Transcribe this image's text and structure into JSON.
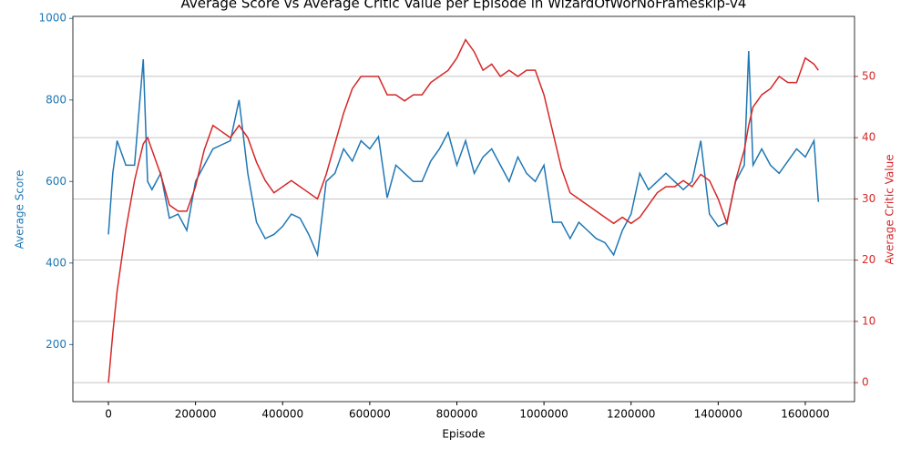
{
  "chart_data": {
    "type": "line",
    "title": "Average Score vs Average Critic Value per Episode in WizardOfWorNoFrameskip-v4",
    "x_label": "Episode",
    "y_label": "Average Score",
    "y2_label": "Average Critic Value",
    "x": [
      0,
      10000,
      20000,
      40000,
      60000,
      80000,
      90000,
      100000,
      120000,
      140000,
      160000,
      180000,
      200000,
      220000,
      240000,
      260000,
      280000,
      300000,
      320000,
      340000,
      360000,
      380000,
      400000,
      420000,
      440000,
      460000,
      480000,
      500000,
      520000,
      540000,
      560000,
      580000,
      600000,
      620000,
      640000,
      660000,
      680000,
      700000,
      720000,
      740000,
      760000,
      780000,
      800000,
      820000,
      840000,
      860000,
      880000,
      900000,
      920000,
      940000,
      960000,
      980000,
      1000000,
      1020000,
      1040000,
      1060000,
      1080000,
      1100000,
      1120000,
      1140000,
      1160000,
      1180000,
      1200000,
      1220000,
      1240000,
      1260000,
      1280000,
      1300000,
      1320000,
      1340000,
      1360000,
      1380000,
      1400000,
      1420000,
      1440000,
      1460000,
      1470000,
      1480000,
      1500000,
      1520000,
      1540000,
      1560000,
      1580000,
      1600000,
      1620000,
      1630000
    ],
    "series": [
      {
        "name": "Average Score",
        "color": "#1f77b4",
        "axis": "y",
        "values": [
          470,
          620,
          700,
          640,
          640,
          900,
          600,
          580,
          620,
          510,
          520,
          480,
          600,
          640,
          680,
          690,
          700,
          800,
          620,
          500,
          460,
          470,
          490,
          520,
          510,
          470,
          420,
          600,
          620,
          680,
          650,
          700,
          680,
          710,
          560,
          640,
          620,
          600,
          600,
          650,
          680,
          720,
          640,
          700,
          620,
          660,
          680,
          640,
          600,
          660,
          620,
          600,
          640,
          500,
          500,
          460,
          500,
          480,
          460,
          450,
          420,
          480,
          520,
          620,
          580,
          600,
          620,
          600,
          580,
          600,
          700,
          520,
          490,
          500,
          600,
          640,
          920,
          640,
          680,
          640,
          620,
          650,
          680,
          660,
          700,
          550
        ]
      },
      {
        "name": "Average Critic Value",
        "color": "#d62728",
        "axis": "y2",
        "values": [
          0,
          8,
          15,
          25,
          33,
          39,
          40,
          38,
          34,
          29,
          28,
          28,
          32,
          38,
          42,
          41,
          40,
          42,
          40,
          36,
          33,
          31,
          32,
          33,
          32,
          31,
          30,
          34,
          39,
          44,
          48,
          50,
          50,
          50,
          47,
          47,
          46,
          47,
          47,
          49,
          50,
          51,
          53,
          56,
          54,
          51,
          52,
          50,
          51,
          50,
          51,
          51,
          47,
          41,
          35,
          31,
          30,
          29,
          28,
          27,
          26,
          27,
          26,
          27,
          29,
          31,
          32,
          32,
          33,
          32,
          34,
          33,
          30,
          26,
          33,
          38,
          42,
          45,
          47,
          48,
          50,
          49,
          49,
          53,
          52,
          51
        ]
      }
    ],
    "xlim": [
      -81600,
      1713000
    ],
    "xticks": [
      0,
      200000,
      400000,
      600000,
      800000,
      1000000,
      1200000,
      1400000,
      1600000
    ],
    "ylim": [
      60,
      1005
    ],
    "yticks": [
      200,
      400,
      600,
      800,
      1000
    ],
    "y2lim": [
      -3.1,
      59.8
    ],
    "y2ticks": [
      0,
      10,
      20,
      30,
      40,
      50
    ],
    "grid": "y2"
  }
}
